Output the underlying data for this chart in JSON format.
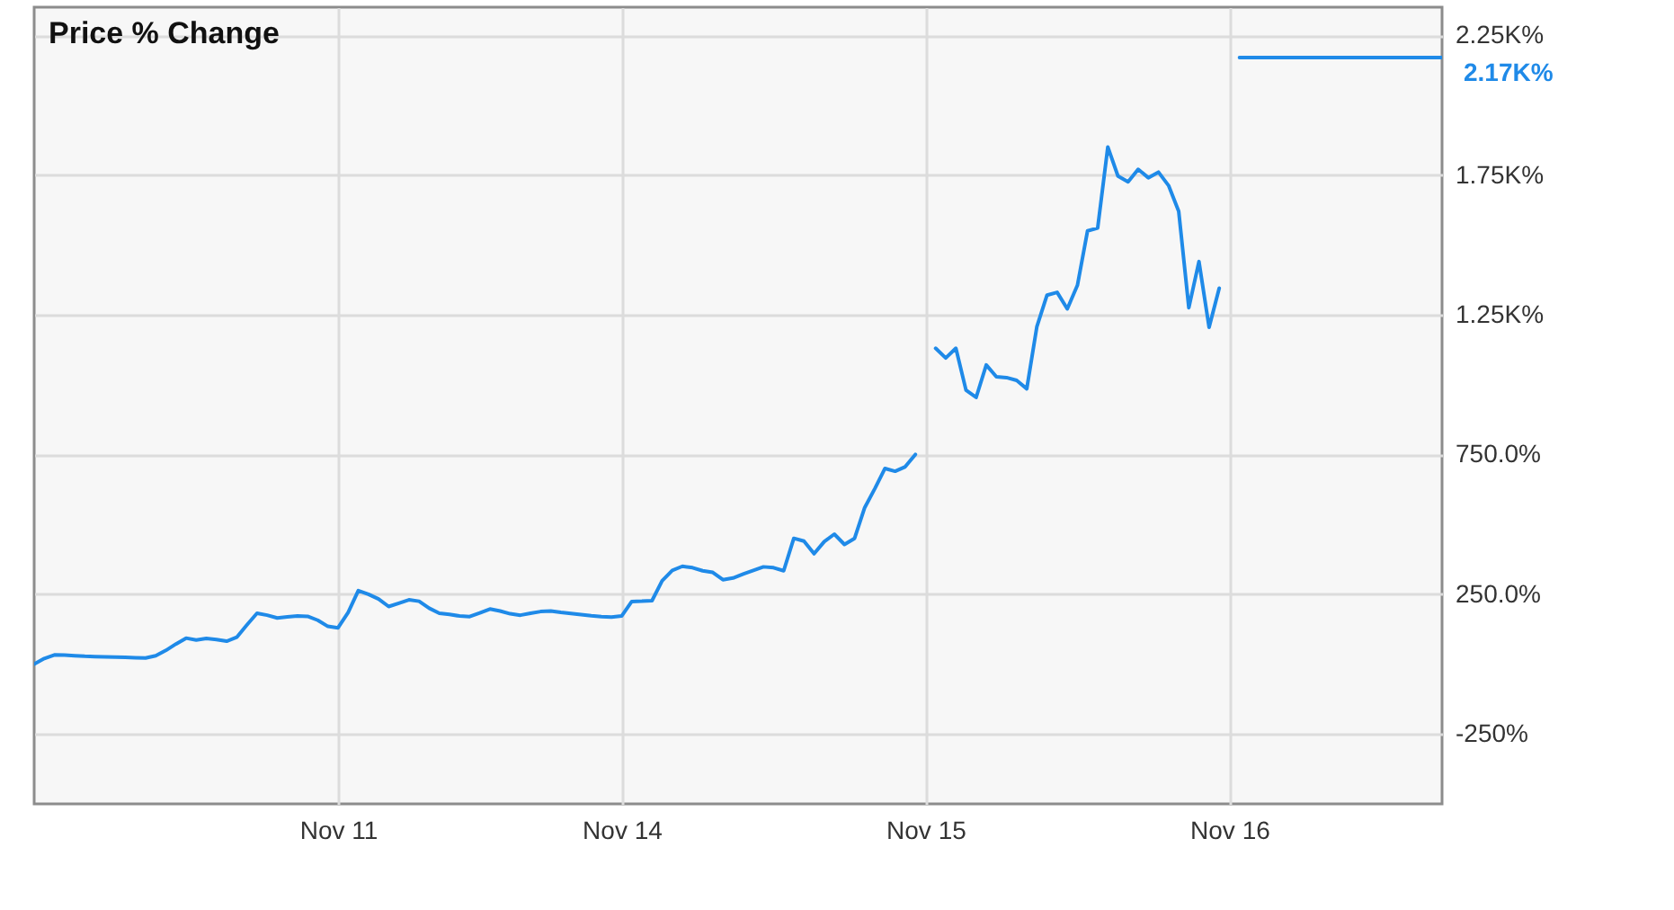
{
  "chart_data": {
    "type": "line",
    "title": "Price % Change",
    "categories": [
      null,
      null,
      null,
      null,
      null,
      null,
      null,
      null,
      null,
      null,
      null,
      null,
      null,
      null,
      null,
      null,
      null,
      null,
      null,
      null,
      null,
      null,
      null,
      null,
      null,
      null,
      null,
      null,
      null,
      null,
      "Nov 11",
      null,
      null,
      null,
      null,
      null,
      null,
      null,
      null,
      null,
      null,
      null,
      null,
      null,
      null,
      null,
      null,
      null,
      null,
      null,
      null,
      null,
      null,
      null,
      null,
      null,
      null,
      null,
      "Nov 14",
      null,
      null,
      null,
      null,
      null,
      null,
      null,
      null,
      null,
      null,
      null,
      null,
      null,
      null,
      null,
      null,
      null,
      null,
      null,
      null,
      null,
      null,
      null,
      null,
      null,
      null,
      null,
      null,
      null,
      "Nov 15",
      null,
      null,
      null,
      null,
      null,
      null,
      null,
      null,
      null,
      null,
      null,
      null,
      null,
      null,
      null,
      null,
      null,
      null,
      null,
      null,
      null,
      null,
      null,
      null,
      null,
      null,
      null,
      null,
      null,
      "Nov 16",
      null,
      null,
      null,
      null,
      null,
      null,
      null,
      null,
      null,
      null,
      null,
      null,
      null,
      null,
      null,
      null,
      null,
      null,
      null,
      null,
      null
    ],
    "series": [
      {
        "color": "#1f8ae8",
        "values": [
          0,
          20,
          33,
          32,
          30,
          28,
          27,
          26,
          25,
          24,
          23,
          22,
          30,
          49,
          72,
          93,
          86,
          92,
          88,
          82,
          96,
          140,
          182,
          175,
          165,
          169,
          172,
          171,
          157,
          135,
          130,
          185,
          263,
          250,
          233,
          206,
          218,
          230,
          225,
          200,
          182,
          178,
          172,
          170,
          183,
          197,
          190,
          180,
          175,
          182,
          188,
          190,
          185,
          181,
          177,
          173,
          170,
          168,
          172,
          224,
          225,
          227,
          298,
          335,
          350,
          345,
          334,
          328,
          302,
          308,
          322,
          335,
          348,
          345,
          334,
          450,
          440,
          395,
          438,
          465,
          428,
          450,
          560,
          628,
          700,
          690,
          706,
          750,
          null,
          1130,
          1095,
          1130,
          980,
          954,
          1070,
          1028,
          1025,
          1015,
          985,
          1208,
          1320,
          1330,
          1271,
          1355,
          1550,
          1560,
          1850,
          1746,
          1725,
          1770,
          1740,
          1760,
          1712,
          1620,
          1275,
          1440,
          1205,
          1345,
          null,
          2170,
          2170,
          2170,
          2170,
          2170,
          2170,
          2170,
          2170,
          2170,
          2170,
          2170,
          2170,
          2170,
          2170,
          2170,
          2170,
          2170,
          2170,
          2170,
          2170,
          2170
        ]
      }
    ],
    "ylim": [
      -500,
      2350
    ],
    "yticks": [
      {
        "value": -250,
        "label": "-250%"
      },
      {
        "value": 250,
        "label": "250.0%"
      },
      {
        "value": 750,
        "label": "750.0%"
      },
      {
        "value": 1250,
        "label": "1.25K%"
      },
      {
        "value": 1750,
        "label": "1.75K%"
      },
      {
        "value": 2250,
        "label": "2.25K%"
      }
    ],
    "grid": true,
    "annotations": [
      "2.17K%"
    ]
  }
}
